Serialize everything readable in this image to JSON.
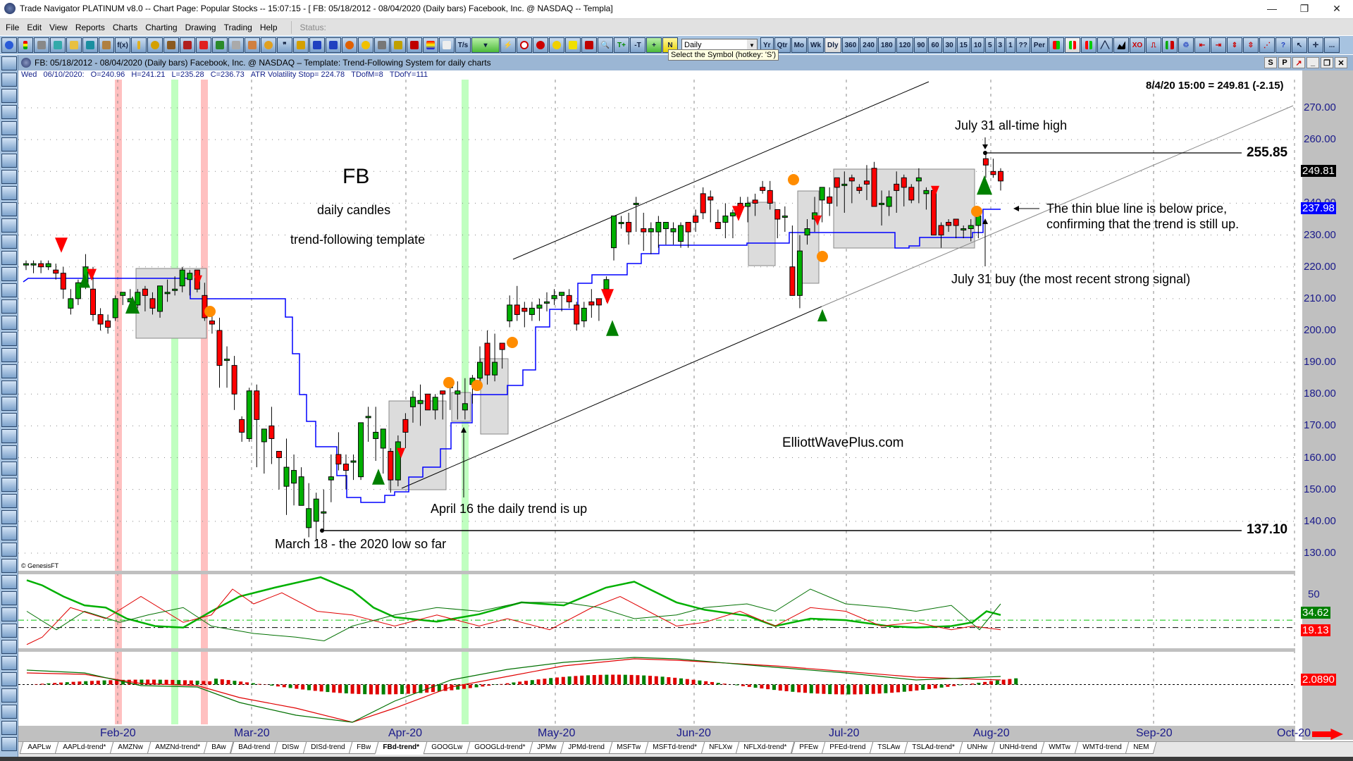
{
  "window": {
    "title": "Trade Navigator PLATINUM v8.0  --  Chart Page: Popular Stocks -- 15:07:15 - [ FB:  05/18/2012 - 08/04/2020  (Daily bars)   Facebook, Inc. @ NASDAQ  --  Templa]",
    "controls": {
      "minimize": "—",
      "maximize": "❐",
      "close": "✕"
    }
  },
  "menu": {
    "items": [
      "File",
      "Edit",
      "View",
      "Reports",
      "Charts",
      "Charting",
      "Drawing",
      "Trading",
      "Help"
    ],
    "status_label": "Status:"
  },
  "toolbar": {
    "period_select": "Daily",
    "tooltip": "Select the Symbol (hotkey: 'S')",
    "period_buttons": [
      "Yr",
      "Qtr",
      "Mo",
      "Wk",
      "Dly",
      "360",
      "240",
      "180",
      "120",
      "90",
      "60",
      "30",
      "15",
      "10",
      "5",
      "3",
      "1",
      "??",
      "Per"
    ],
    "selected_period": "Dly",
    "more_label": "..."
  },
  "chart_header": {
    "text": "FB:  05/18/2012 - 08/04/2020  (Daily bars)   Facebook, Inc. @ NASDAQ  –  Template: Trend-Following System for daily charts",
    "buttons": [
      "S",
      "P",
      "↗",
      "_",
      "❐",
      "✕"
    ]
  },
  "info_line": {
    "day": "Wed",
    "date": "06/10/2020:",
    "open": "O=240.96",
    "high": "H=241.21",
    "low": "L=235.28",
    "close": "C=236.73",
    "atr_stop": "ATR Volatility Stop= 224.78",
    "tdofm": "TDofM=8",
    "tdofy": "TDofY=111"
  },
  "price_pane": {
    "last_quote": "8/4/20 15:00 = 249.81 (-2.15)",
    "y_ticks": [
      "270.00",
      "260.00",
      "250.00",
      "240.00",
      "230.00",
      "220.00",
      "210.00",
      "200.00",
      "190.00",
      "180.00",
      "170.00",
      "160.00",
      "150.00",
      "140.00",
      "130.00"
    ],
    "last_price_badge": "249.81",
    "stop_badge": "237.98",
    "high_level_label": "255.85",
    "low_level_label": "137.10",
    "copyright": "© GenesisFT",
    "colors": {
      "up": "#00b000",
      "down": "#ff0000",
      "stop_line": "#0000ff",
      "box": "#dcdcdc",
      "signal_dot": "#ff8c00",
      "buy_arrow": "#008000",
      "sell_arrow": "#ff0000",
      "green_band": "#c0ffc0",
      "red_band": "#ffc0c0"
    }
  },
  "annotations": {
    "symbol": "FB",
    "subtitle1": "daily candles",
    "subtitle2": "trend-following template",
    "ath": "July 31 all-time high",
    "blue_line_1": "The thin blue line is below price,",
    "blue_line_2": "confirming that the trend is still up.",
    "buy": "July 31 buy (the most recent strong signal)",
    "april": "April 16 the daily trend is up",
    "march": "March 18 - the 2020 low so far",
    "watermark": "ElliottWavePlus.com"
  },
  "indicator1": {
    "tick": "50",
    "badges": [
      "34.62",
      "19.13"
    ]
  },
  "indicator2": {
    "badges": [
      "2.0890"
    ]
  },
  "date_axis": [
    "Feb-20",
    "Mar-20",
    "Apr-20",
    "May-20",
    "Jun-20",
    "Jul-20",
    "Aug-20",
    "Sep-20",
    "Oct-20"
  ],
  "tabs": [
    "AAPLw",
    "AAPLd-trend*",
    "AMZNw",
    "AMZNd-trend*",
    "BAw",
    "BAd-trend",
    "DISw",
    "DISd-trend",
    "FBw",
    "FBd-trend*",
    "GOOGLw",
    "GOOGLd-trend*",
    "JPMw",
    "JPMd-trend",
    "MSFTw",
    "MSFTd-trend*",
    "NFLXw",
    "NFLXd-trend*",
    "PFEw",
    "PFEd-trend",
    "TSLAw",
    "TSLAd-trend*",
    "UNHw",
    "UNHd-trend",
    "WMTw",
    "WMTd-trend",
    "NEM"
  ],
  "active_tab": "FBd-trend*",
  "chart_data": {
    "type": "candlestick",
    "title": "FB daily candles — trend-following template",
    "y_range": [
      125,
      278
    ],
    "x_labels": [
      "Feb-20",
      "Mar-20",
      "Apr-20",
      "May-20",
      "Jun-20",
      "Jul-20",
      "Aug-20",
      "Sep-20",
      "Oct-20"
    ],
    "candles_ohlc": [
      [
        221,
        222,
        219,
        221
      ],
      [
        221,
        222,
        218,
        221
      ],
      [
        221,
        222,
        218,
        220
      ],
      [
        220,
        222,
        219,
        221
      ],
      [
        219,
        221,
        216,
        218
      ],
      [
        218,
        220,
        210,
        213
      ],
      [
        207,
        213,
        205,
        210
      ],
      [
        210,
        216,
        208,
        215
      ],
      [
        214,
        224,
        213,
        220
      ],
      [
        213,
        220,
        203,
        205
      ],
      [
        205,
        207,
        200,
        202
      ],
      [
        203,
        205,
        199,
        201
      ],
      [
        204,
        211,
        203,
        210
      ],
      [
        211,
        212,
        208,
        212
      ],
      [
        209,
        213,
        208,
        210
      ],
      [
        208,
        213,
        207,
        212
      ],
      [
        213,
        214,
        206,
        211
      ],
      [
        210,
        212,
        205,
        207
      ],
      [
        206,
        214,
        204,
        214
      ],
      [
        212,
        216,
        209,
        212
      ],
      [
        213,
        217,
        211,
        213
      ],
      [
        214,
        220,
        212,
        219
      ],
      [
        216,
        219,
        211,
        218
      ],
      [
        219,
        218,
        212,
        213
      ],
      [
        211,
        215,
        203,
        204
      ],
      [
        203,
        206,
        199,
        202
      ],
      [
        200,
        204,
        182,
        189
      ],
      [
        191,
        195,
        182,
        191
      ],
      [
        189,
        192,
        175,
        180
      ],
      [
        172,
        173,
        165,
        168
      ],
      [
        166,
        182,
        165,
        181
      ],
      [
        181,
        183,
        157,
        172
      ],
      [
        165,
        169,
        155,
        169
      ],
      [
        170,
        176,
        158,
        166
      ],
      [
        162,
        160,
        150,
        160
      ],
      [
        151,
        166,
        142,
        157
      ],
      [
        152,
        161,
        145,
        156
      ],
      [
        145,
        157,
        146,
        154
      ],
      [
        138,
        152,
        135,
        144
      ],
      [
        140,
        149,
        134,
        147
      ],
      [
        143,
        150,
        137,
        143
      ],
      [
        153,
        161,
        146,
        154
      ],
      [
        161,
        168,
        156,
        158
      ],
      [
        158,
        161,
        150,
        156
      ],
      [
        159,
        161,
        153,
        159
      ],
      [
        154,
        167,
        153,
        171
      ],
      [
        173,
        176,
        165,
        173
      ],
      [
        166,
        176,
        159,
        168
      ],
      [
        163,
        168,
        155,
        169
      ],
      [
        162,
        163,
        149,
        153
      ],
      [
        153,
        167,
        151,
        165
      ],
      [
        172,
        174,
        163,
        168
      ],
      [
        176,
        181,
        171,
        179
      ],
      [
        177,
        183,
        170,
        178
      ],
      [
        180,
        178,
        175,
        175
      ],
      [
        175,
        180,
        172,
        179
      ],
      [
        181,
        181,
        172,
        180
      ],
      [
        182,
        181,
        175,
        184
      ],
      [
        180,
        184,
        172,
        181
      ],
      [
        175,
        185,
        172,
        177
      ],
      [
        183,
        186,
        177,
        185
      ],
      [
        185,
        195,
        183,
        190
      ],
      [
        196,
        200,
        183,
        186
      ],
      [
        186,
        199,
        184,
        190
      ],
      [
        196,
        196,
        188,
        194
      ],
      [
        203,
        211,
        201,
        208
      ],
      [
        208,
        214,
        203,
        205
      ],
      [
        207,
        209,
        201,
        206
      ],
      [
        205,
        209,
        203,
        207
      ],
      [
        207,
        210,
        203,
        208
      ],
      [
        209,
        212,
        206,
        209
      ],
      [
        210,
        213,
        208,
        211
      ],
      [
        211,
        212,
        206,
        212
      ],
      [
        211,
        213,
        207,
        209
      ],
      [
        208,
        209,
        200,
        202
      ],
      [
        203,
        209,
        201,
        207
      ],
      [
        209,
        213,
        204,
        208
      ],
      [
        210,
        210,
        203,
        208
      ],
      [
        213,
        217,
        209,
        216
      ],
      [
        226,
        228,
        222,
        236
      ],
      [
        234,
        236,
        232,
        234
      ],
      [
        234,
        237,
        227,
        231
      ],
      [
        240,
        242,
        231,
        240
      ],
      [
        232,
        237,
        225,
        231
      ],
      [
        231,
        234,
        224,
        232
      ],
      [
        231,
        236,
        226,
        234
      ],
      [
        232,
        233,
        227,
        234
      ],
      [
        231,
        234,
        227,
        232
      ],
      [
        228,
        234,
        226,
        233
      ],
      [
        234,
        234,
        226,
        231
      ],
      [
        236,
        238,
        231,
        234
      ],
      [
        243,
        245,
        235,
        237
      ],
      [
        242,
        244,
        234,
        241
      ],
      [
        234,
        238,
        233,
        232
      ],
      [
        234,
        240,
        229,
        236
      ],
      [
        236,
        238,
        229,
        237
      ],
      [
        240,
        242,
        237,
        239
      ],
      [
        239,
        242,
        234,
        240
      ],
      [
        241,
        243,
        236,
        240
      ],
      [
        245,
        247,
        243,
        244
      ],
      [
        244,
        247,
        238,
        240
      ],
      [
        238,
        238,
        229,
        235
      ],
      [
        236,
        239,
        231,
        236
      ],
      [
        220,
        233,
        213,
        211
      ],
      [
        211,
        230,
        207,
        225
      ],
      [
        230,
        235,
        227,
        232
      ],
      [
        235,
        242,
        231,
        237
      ],
      [
        241,
        244,
        234,
        245
      ],
      [
        242,
        245,
        236,
        240
      ],
      [
        248,
        247,
        239,
        245
      ],
      [
        246,
        250,
        237,
        246
      ],
      [
        248,
        249,
        240,
        247
      ],
      [
        245,
        246,
        243,
        244
      ],
      [
        247,
        252,
        241,
        246
      ],
      [
        251,
        253,
        240,
        239
      ],
      [
        240,
        244,
        233,
        240
      ],
      [
        239,
        244,
        236,
        242
      ],
      [
        246,
        250,
        237,
        244
      ],
      [
        248,
        249,
        239,
        245
      ],
      [
        245,
        246,
        240,
        241
      ],
      [
        247,
        251,
        240,
        248
      ],
      [
        243,
        245,
        238,
        244
      ],
      [
        244,
        245,
        231,
        230
      ],
      [
        233,
        234,
        226,
        230
      ],
      [
        234,
        235,
        231,
        233
      ],
      [
        235,
        235,
        229,
        233
      ],
      [
        232,
        233,
        229,
        232
      ],
      [
        232,
        235,
        228,
        233
      ],
      [
        233,
        236,
        229,
        236
      ],
      [
        254,
        256,
        248,
        252
      ],
      [
        250,
        254,
        248,
        249
      ],
      [
        250,
        251,
        244,
        247
      ]
    ]
  }
}
